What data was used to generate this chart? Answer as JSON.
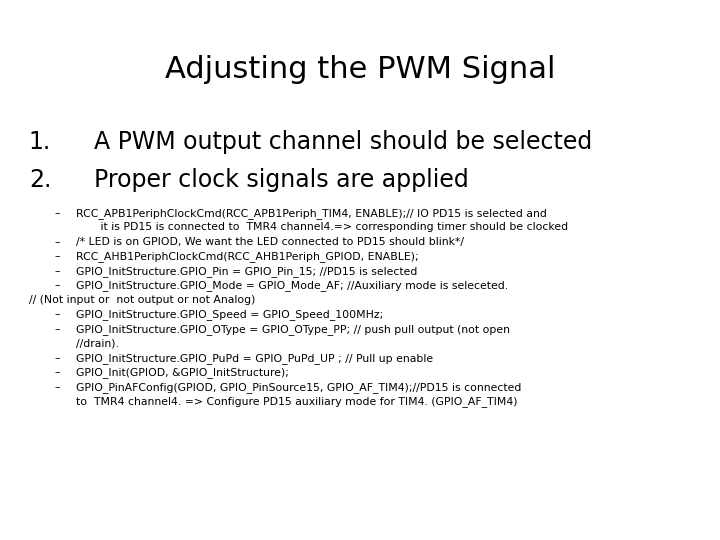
{
  "title": "Adjusting the PWM Signal",
  "background_color": "#ffffff",
  "title_fontsize": 22,
  "item_fontsize": 17,
  "bullet_fontsize": 7.8,
  "items": [
    {
      "number": "1.",
      "text": "A PWM output channel should be selected"
    },
    {
      "number": "2.",
      "text": "Proper clock signals are applied"
    }
  ],
  "bullets": [
    {
      "indent": true,
      "lines": [
        "RCC_APB1PeriphClockCmd(RCC_APB1Periph_TIM4, ENABLE);// IO PD15 is selected and",
        "       it is PD15 is connected to  TMR4 channel4.=> corresponding timer should be clocked"
      ]
    },
    {
      "indent": true,
      "lines": [
        "/* LED is on GPIOD, We want the LED connected to PD15 should blink*/"
      ]
    },
    {
      "indent": true,
      "lines": [
        "RCC_AHB1PeriphClockCmd(RCC_AHB1Periph_GPIOD, ENABLE);"
      ]
    },
    {
      "indent": true,
      "lines": [
        "GPIO_InitStructure.GPIO_Pin = GPIO_Pin_15; //PD15 is selected"
      ]
    },
    {
      "indent": true,
      "lines": [
        "GPIO_InitStructure.GPIO_Mode = GPIO_Mode_AF; //Auxiliary mode is seleceted."
      ]
    },
    {
      "indent": false,
      "lines": [
        "// (Not input or  not output or not Analog)"
      ]
    },
    {
      "indent": true,
      "lines": [
        "GPIO_InitStructure.GPIO_Speed = GPIO_Speed_100MHz;"
      ]
    },
    {
      "indent": true,
      "lines": [
        "GPIO_InitStructure.GPIO_OType = GPIO_OType_PP; // push pull output (not open",
        "//drain)."
      ]
    },
    {
      "indent": true,
      "lines": [
        "GPIO_InitStructure.GPIO_PuPd = GPIO_PuPd_UP ; // Pull up enable"
      ]
    },
    {
      "indent": true,
      "lines": [
        "GPIO_Init(GPIOD, &GPIO_InitStructure);"
      ]
    },
    {
      "indent": true,
      "lines": [
        "GPIO_PinAFConfig(GPIOD, GPIO_PinSource15, GPIO_AF_TIM4);//PD15 is connected",
        "to  TMR4 channel4. => Configure PD15 auxiliary mode for TIM4. (GPIO_AF_TIM4)"
      ]
    }
  ]
}
